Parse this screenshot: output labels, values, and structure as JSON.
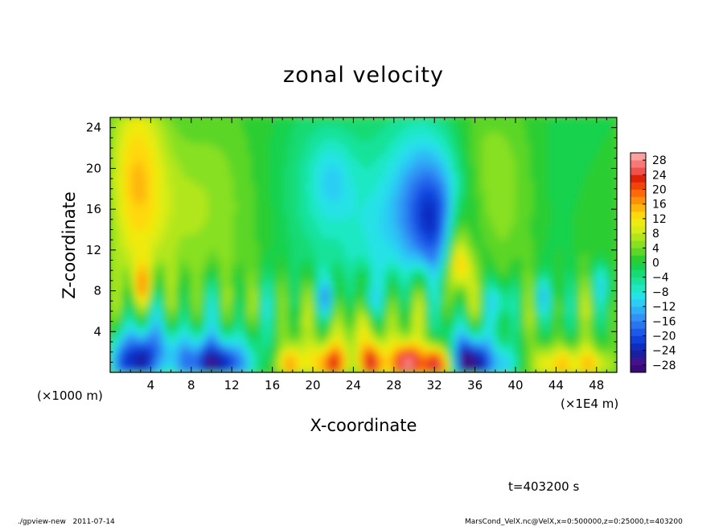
{
  "chart_data": {
    "type": "heatmap",
    "title": "zonal velocity",
    "xlabel": "X-coordinate",
    "ylabel": "Z-coordinate",
    "x_unit_label": "(×1E4 m)",
    "y_unit_label": "(×1000 m)",
    "xlim": [
      0,
      50
    ],
    "ylim": [
      0,
      25
    ],
    "x_ticks": [
      4,
      8,
      12,
      16,
      20,
      24,
      28,
      32,
      36,
      40,
      44,
      48
    ],
    "y_ticks": [
      4,
      8,
      12,
      16,
      20,
      24
    ],
    "x_tick_labels": [
      "4",
      "8",
      "12",
      "16",
      "20",
      "24",
      "28",
      "32",
      "36",
      "40",
      "44",
      "48"
    ],
    "y_tick_labels": [
      "4",
      "8",
      "12",
      "16",
      "20",
      "24"
    ],
    "colorbar": {
      "labels": [
        "28",
        "24",
        "20",
        "16",
        "12",
        "8",
        "4",
        "0",
        "−4",
        "−8",
        "−12",
        "−16",
        "−20",
        "−24",
        "−28"
      ],
      "levels": [
        -30,
        -28,
        -26,
        -24,
        -22,
        -20,
        -18,
        -16,
        -14,
        -12,
        -10,
        -8,
        -6,
        -4,
        -2,
        0,
        2,
        4,
        6,
        8,
        10,
        12,
        14,
        16,
        18,
        20,
        22,
        24,
        26,
        28,
        30
      ],
      "colors": [
        "#3a0a7a",
        "#43138f",
        "#1a1f9e",
        "#0f2cc0",
        "#1040d8",
        "#1b5ae8",
        "#2a74f0",
        "#2f92f4",
        "#2fb0f6",
        "#2ccdf4",
        "#25e2e6",
        "#1ee8c4",
        "#19e29a",
        "#16da72",
        "#18d24e",
        "#2ccd30",
        "#5cd628",
        "#88e020",
        "#b2e61c",
        "#d6ec16",
        "#f0ea10",
        "#ffd80c",
        "#ffb60a",
        "#ff9008",
        "#ff6a08",
        "#f24408",
        "#de220a",
        "#f0524a",
        "#f87878",
        "#ffa0a0"
      ]
    },
    "annotation_time": "t=403200 s"
  },
  "footer": {
    "left": "./gpview-new   2011-07-14",
    "right": "MarsCond_VelX.nc@VelX,x=0:500000,z=0:25000,t=403200"
  }
}
